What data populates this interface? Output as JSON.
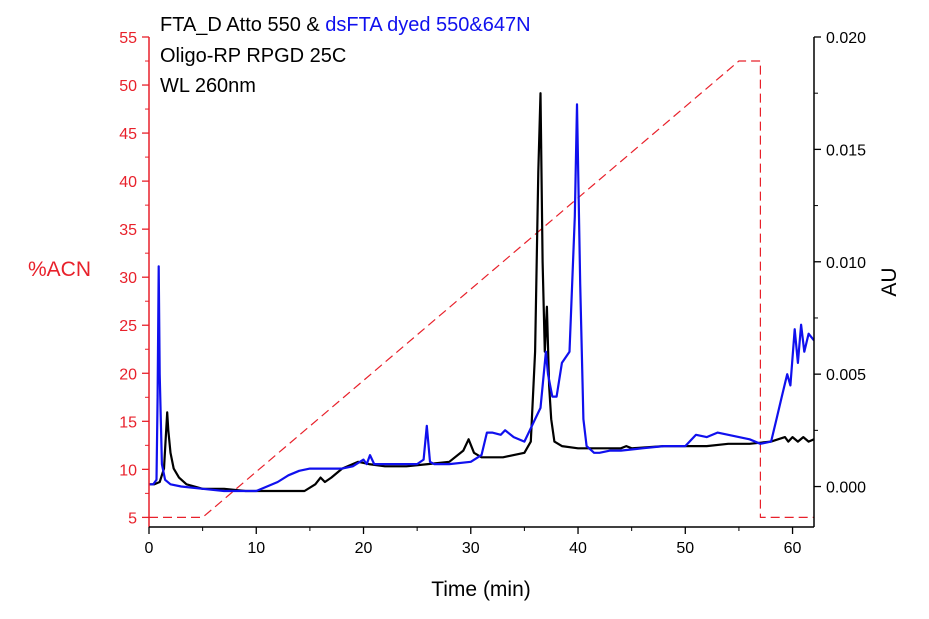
{
  "chart_data": {
    "type": "line",
    "annotations": {
      "line1": "FTA_D Atto 550 & ",
      "line1_blue": "dsFTA dyed 550&647N",
      "line2": "Oligo-RP RPGD 25C",
      "line3": "WL 260nm"
    },
    "xlabel": "Time (min)",
    "ylabel_left": "%ACN",
    "ylabel_right": "AU",
    "xlim": [
      0,
      62
    ],
    "ylim_left": [
      4,
      55
    ],
    "ylim_right": [
      -0.0018,
      0.02
    ],
    "x_ticks": [
      "0",
      "10",
      "20",
      "30",
      "40",
      "50",
      "60"
    ],
    "y_left_ticks": [
      "5",
      "10",
      "15",
      "20",
      "25",
      "30",
      "35",
      "40",
      "45",
      "50",
      "55"
    ],
    "y_right_ticks": [
      "0.000",
      "0.005",
      "0.010",
      "0.015",
      "0.020"
    ],
    "colors": {
      "left_axis": "#e8212b",
      "acn": "#e8212b",
      "black_trace": "#000000",
      "blue_trace": "#1010ee"
    },
    "series": [
      {
        "axis": "left",
        "style": "dashed",
        "color": "#e8212b",
        "x": [
          0,
          5,
          55,
          57,
          57,
          62
        ],
        "y": [
          5,
          5,
          52.5,
          52.5,
          5,
          5
        ]
      },
      {
        "axis": "right",
        "style": "solid",
        "color": "#000000",
        "x": [
          0,
          0.5,
          1.0,
          1.4,
          1.7,
          1.8,
          2.0,
          2.3,
          2.8,
          3.5,
          5,
          7,
          9,
          11,
          13,
          14.5,
          15.5,
          16.0,
          16.4,
          17,
          18,
          19.5,
          20.5,
          22,
          24,
          26,
          28,
          29.3,
          29.8,
          30.3,
          31,
          33,
          35,
          35.6,
          36.0,
          36.3,
          36.5,
          36.7,
          36.9,
          37.1,
          37.3,
          37.5,
          37.8,
          38.5,
          40,
          42,
          44,
          44.5,
          45,
          48,
          50,
          52,
          54,
          56,
          58,
          59.3,
          59.6,
          60,
          60.5,
          61,
          61.5,
          62
        ],
        "y": [
          0.0001,
          0.0001,
          0.0002,
          0.0008,
          0.0033,
          0.0025,
          0.0015,
          0.0008,
          0.0004,
          0.0001,
          -0.0001,
          -0.0001,
          -0.0002,
          -0.0002,
          -0.0002,
          -0.0002,
          0.0001,
          0.0004,
          0.0002,
          0.0004,
          0.0008,
          0.0011,
          0.001,
          0.0009,
          0.0009,
          0.001,
          0.0011,
          0.0016,
          0.0021,
          0.0015,
          0.0013,
          0.0013,
          0.0015,
          0.002,
          0.006,
          0.014,
          0.0175,
          0.01,
          0.006,
          0.008,
          0.0045,
          0.003,
          0.002,
          0.0018,
          0.0017,
          0.0017,
          0.0017,
          0.0018,
          0.0017,
          0.0018,
          0.0018,
          0.0018,
          0.0019,
          0.0019,
          0.002,
          0.0022,
          0.002,
          0.0022,
          0.002,
          0.0022,
          0.002,
          0.0021
        ]
      },
      {
        "axis": "right",
        "style": "solid",
        "color": "#1010ee",
        "x": [
          0,
          0.4,
          0.7,
          0.8,
          0.9,
          1.0,
          1.2,
          1.5,
          2,
          3,
          5,
          7,
          9,
          10,
          11,
          12,
          13,
          14,
          15,
          16,
          17,
          18,
          19,
          20,
          20.3,
          20.6,
          21,
          23,
          25,
          25.6,
          25.9,
          26.2,
          26.6,
          28,
          30,
          31,
          31.5,
          32,
          32.8,
          33.2,
          34,
          35,
          35.5,
          36.0,
          36.5,
          37.0,
          37.2,
          37.6,
          38,
          38.5,
          39.2,
          39.7,
          39.9,
          40.2,
          40.5,
          40.8,
          41.5,
          42,
          43,
          44,
          46,
          48,
          50,
          51,
          52,
          53,
          54,
          55,
          56,
          57,
          58,
          58.5,
          59,
          59.5,
          59.8,
          60.2,
          60.5,
          60.8,
          61.1,
          61.5,
          62
        ],
        "y": [
          0.0001,
          0.0001,
          0.0003,
          0.004,
          0.0098,
          0.005,
          0.001,
          0.0003,
          0.0001,
          0.0,
          -0.0001,
          -0.0002,
          -0.0002,
          -0.0002,
          0.0,
          0.0002,
          0.0005,
          0.0007,
          0.0008,
          0.0008,
          0.0008,
          0.0008,
          0.0009,
          0.0012,
          0.001,
          0.0014,
          0.001,
          0.001,
          0.001,
          0.0012,
          0.0027,
          0.0011,
          0.001,
          0.001,
          0.0011,
          0.0014,
          0.0024,
          0.0024,
          0.0023,
          0.0025,
          0.0022,
          0.002,
          0.0025,
          0.003,
          0.0035,
          0.006,
          0.005,
          0.004,
          0.004,
          0.0055,
          0.006,
          0.012,
          0.017,
          0.009,
          0.003,
          0.0018,
          0.0015,
          0.0015,
          0.0016,
          0.0016,
          0.0017,
          0.0018,
          0.0018,
          0.0023,
          0.0022,
          0.0024,
          0.0023,
          0.0022,
          0.0021,
          0.0019,
          0.002,
          0.003,
          0.004,
          0.005,
          0.0045,
          0.007,
          0.0055,
          0.0072,
          0.006,
          0.0068,
          0.0065
        ]
      }
    ]
  }
}
